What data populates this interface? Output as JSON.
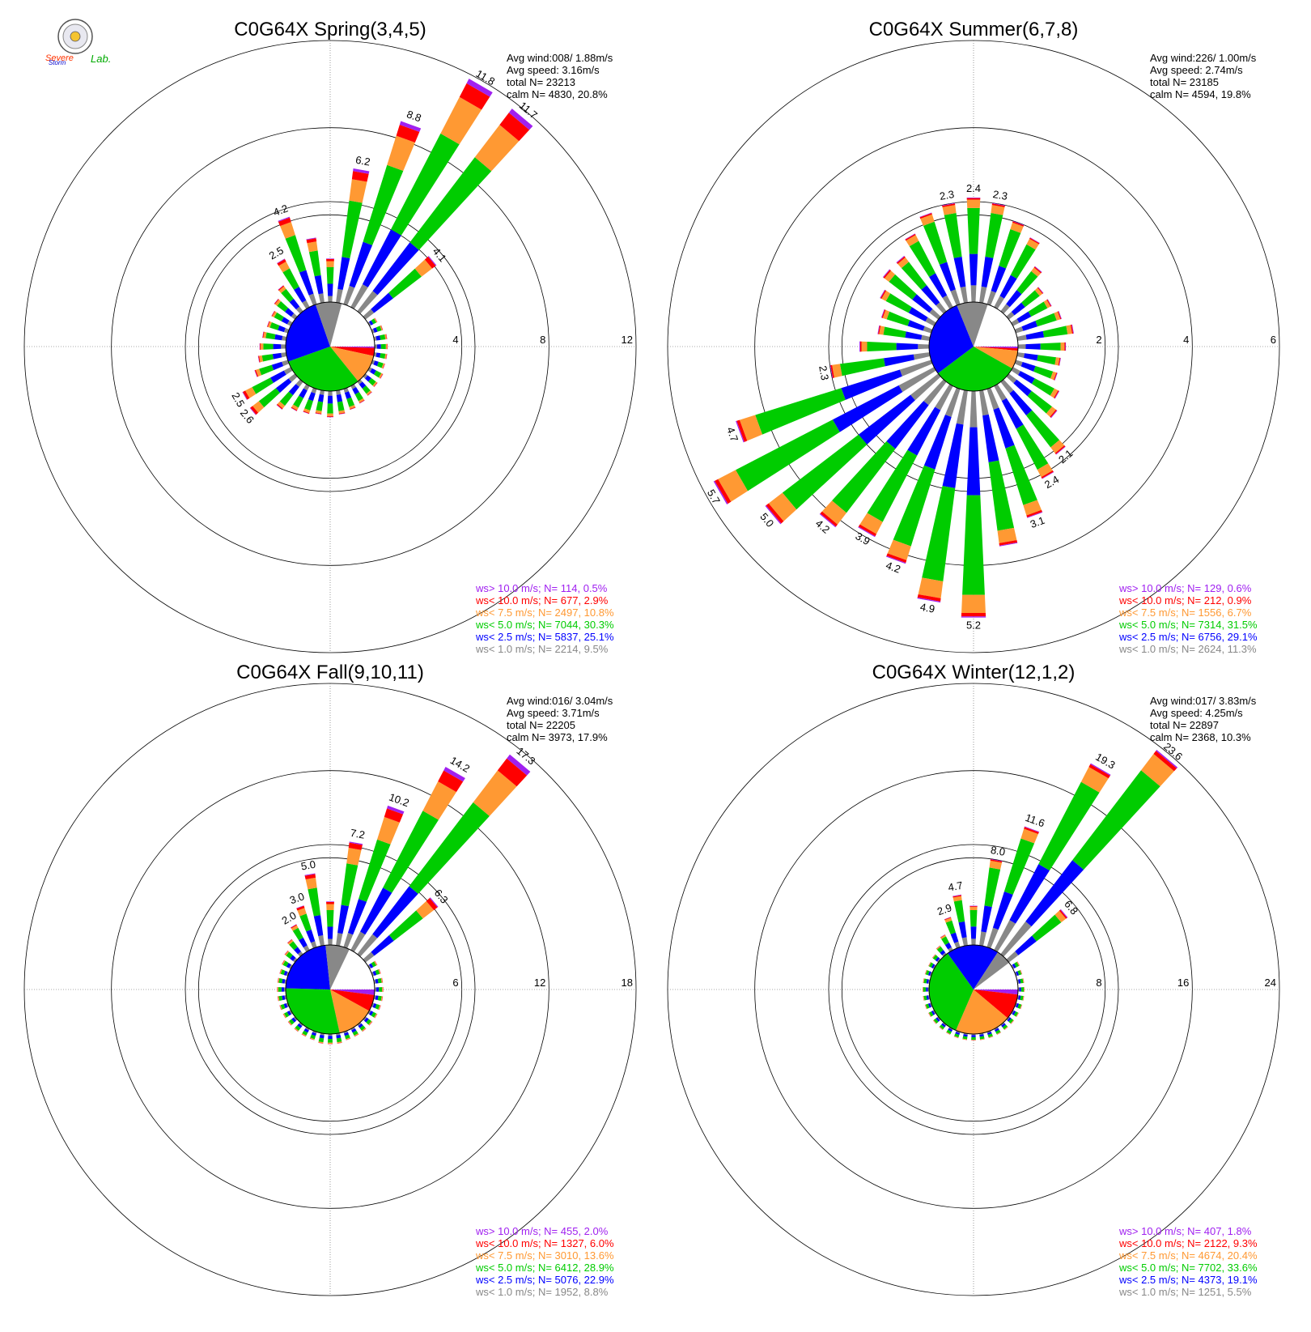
{
  "logo": {
    "text_line1": "Severe",
    "text_line2": "Storm",
    "text_line3": "Lab."
  },
  "legend_categories": [
    {
      "key": "gt10",
      "label": "ws> 10.0 m/s; N=",
      "color": "#a020f0"
    },
    {
      "key": "lt10",
      "label": "ws< 10.0 m/s; N=",
      "color": "#ff0000"
    },
    {
      "key": "lt75",
      "label": "ws<  7.5 m/s; N=",
      "color": "#ff9933"
    },
    {
      "key": "lt5",
      "label": "ws<  5.0 m/s; N=",
      "color": "#00cc00"
    },
    {
      "key": "lt25",
      "label": "ws<  2.5 m/s; N=",
      "color": "#0000ff"
    },
    {
      "key": "lt1",
      "label": "ws<  1.0 m/s; N=",
      "color": "#888888"
    }
  ],
  "chart_data": [
    {
      "type": "windrose",
      "title": "C0G64X Spring(3,4,5)",
      "stats": {
        "avg_wind": "Avg wind:008/ 1.88m/s",
        "avg_speed": "Avg speed: 3.16m/s",
        "total_label": "total N=",
        "total": "23213",
        "calm_label": "calm N=",
        "calm": "4830,  20.8%"
      },
      "ring_labels": [
        "4",
        "8",
        "12"
      ],
      "rmax": 12,
      "legend": [
        {
          "n": "114",
          "pct": "0.5%"
        },
        {
          "n": "677",
          "pct": "2.9%"
        },
        {
          "n": "2497",
          "pct": "10.8%"
        },
        {
          "n": "7044",
          "pct": "30.3%"
        },
        {
          "n": "5837",
          "pct": "25.1%"
        },
        {
          "n": "2214",
          "pct": "9.5%"
        }
      ],
      "pie": [
        0.5,
        2.9,
        10.8,
        30.3,
        25.1,
        9.5
      ],
      "sectors": [
        {
          "dir": 0,
          "total": 2.0
        },
        {
          "dir": 10,
          "total": 6.2,
          "label": "6.2"
        },
        {
          "dir": 20,
          "total": 8.8,
          "label": "8.8"
        },
        {
          "dir": 30,
          "total": 11.8,
          "label": "11.8"
        },
        {
          "dir": 40,
          "total": 11.7,
          "label": "11.7"
        },
        {
          "dir": 50,
          "total": 4.1,
          "label": "4.1"
        },
        {
          "dir": 60,
          "total": 0.4
        },
        {
          "dir": 70,
          "total": 0.5
        },
        {
          "dir": 80,
          "total": 0.6
        },
        {
          "dir": 90,
          "total": 0.6
        },
        {
          "dir": 100,
          "total": 0.6
        },
        {
          "dir": 110,
          "total": 0.6
        },
        {
          "dir": 120,
          "total": 0.7
        },
        {
          "dir": 130,
          "total": 0.7
        },
        {
          "dir": 140,
          "total": 0.8
        },
        {
          "dir": 150,
          "total": 0.9
        },
        {
          "dir": 160,
          "total": 1.0
        },
        {
          "dir": 170,
          "total": 1.1
        },
        {
          "dir": 180,
          "total": 1.2
        },
        {
          "dir": 190,
          "total": 1.1
        },
        {
          "dir": 200,
          "total": 1.2
        },
        {
          "dir": 210,
          "total": 1.3
        },
        {
          "dir": 220,
          "total": 1.6
        },
        {
          "dir": 230,
          "total": 2.6,
          "label": "2.6"
        },
        {
          "dir": 240,
          "total": 2.5,
          "label": "2.5"
        },
        {
          "dir": 250,
          "total": 1.6
        },
        {
          "dir": 260,
          "total": 1.3
        },
        {
          "dir": 270,
          "total": 1.2
        },
        {
          "dir": 280,
          "total": 1.1
        },
        {
          "dir": 290,
          "total": 1.0
        },
        {
          "dir": 300,
          "total": 1.0
        },
        {
          "dir": 310,
          "total": 1.2
        },
        {
          "dir": 320,
          "total": 1.5
        },
        {
          "dir": 330,
          "total": 2.5,
          "label": "2.5"
        },
        {
          "dir": 340,
          "total": 4.2,
          "label": "4.2"
        },
        {
          "dir": 350,
          "total": 3.0
        }
      ]
    },
    {
      "type": "windrose",
      "title": "C0G64X Summer(6,7,8)",
      "stats": {
        "avg_wind": "Avg wind:226/ 1.00m/s",
        "avg_speed": "Avg speed: 2.74m/s",
        "total_label": "total N=",
        "total": "23185",
        "calm_label": "calm N=",
        "calm": "4594,  19.8%"
      },
      "ring_labels": [
        "2",
        "4",
        "6"
      ],
      "rmax": 6,
      "legend": [
        {
          "n": "129",
          "pct": "0.6%"
        },
        {
          "n": "212",
          "pct": "0.9%"
        },
        {
          "n": "1556",
          "pct": "6.7%"
        },
        {
          "n": "7314",
          "pct": "31.5%"
        },
        {
          "n": "6756",
          "pct": "29.1%"
        },
        {
          "n": "2624",
          "pct": "11.3%"
        }
      ],
      "pie": [
        0.6,
        0.9,
        6.7,
        31.5,
        29.1,
        11.3
      ],
      "sectors": [
        {
          "dir": 0,
          "total": 2.4,
          "label": "2.4"
        },
        {
          "dir": 10,
          "total": 2.3,
          "label": "2.3"
        },
        {
          "dir": 20,
          "total": 2.0
        },
        {
          "dir": 30,
          "total": 1.8
        },
        {
          "dir": 40,
          "total": 1.3
        },
        {
          "dir": 50,
          "total": 1.0
        },
        {
          "dir": 60,
          "total": 1.0
        },
        {
          "dir": 70,
          "total": 1.1
        },
        {
          "dir": 80,
          "total": 1.3
        },
        {
          "dir": 90,
          "total": 1.1
        },
        {
          "dir": 100,
          "total": 1.0
        },
        {
          "dir": 110,
          "total": 1.0
        },
        {
          "dir": 120,
          "total": 1.2
        },
        {
          "dir": 130,
          "total": 1.4
        },
        {
          "dir": 140,
          "total": 2.1,
          "label": "2.1"
        },
        {
          "dir": 150,
          "total": 2.4,
          "label": "2.4"
        },
        {
          "dir": 160,
          "total": 3.1,
          "label": "3.1"
        },
        {
          "dir": 170,
          "total": 3.6
        },
        {
          "dir": 180,
          "total": 5.2,
          "label": "5.2"
        },
        {
          "dir": 190,
          "total": 4.9,
          "label": "4.9"
        },
        {
          "dir": 200,
          "total": 4.2,
          "label": "4.2"
        },
        {
          "dir": 210,
          "total": 3.9,
          "label": "3.9"
        },
        {
          "dir": 220,
          "total": 4.2,
          "label": "4.2"
        },
        {
          "dir": 230,
          "total": 5.0,
          "label": "5.0"
        },
        {
          "dir": 240,
          "total": 5.7,
          "label": "5.7"
        },
        {
          "dir": 250,
          "total": 4.7,
          "label": "4.7"
        },
        {
          "dir": 260,
          "total": 2.3,
          "label": "2.3"
        },
        {
          "dir": 270,
          "total": 1.6
        },
        {
          "dir": 280,
          "total": 1.2
        },
        {
          "dir": 290,
          "total": 1.2
        },
        {
          "dir": 300,
          "total": 1.4
        },
        {
          "dir": 310,
          "total": 1.6
        },
        {
          "dir": 320,
          "total": 1.6
        },
        {
          "dir": 330,
          "total": 1.9
        },
        {
          "dir": 340,
          "total": 2.2
        },
        {
          "dir": 350,
          "total": 2.3,
          "label": "2.3"
        }
      ]
    },
    {
      "type": "windrose",
      "title": "C0G64X Fall(9,10,11)",
      "stats": {
        "avg_wind": "Avg wind:016/ 3.04m/s",
        "avg_speed": "Avg speed: 3.71m/s",
        "total_label": "total N=",
        "total": "22205",
        "calm_label": "calm N=",
        "calm": "3973,  17.9%"
      },
      "ring_labels": [
        "6",
        "12",
        "18"
      ],
      "rmax": 18,
      "legend": [
        {
          "n": "455",
          "pct": "2.0%"
        },
        {
          "n": "1327",
          "pct": "6.0%"
        },
        {
          "n": "3010",
          "pct": "13.6%"
        },
        {
          "n": "6412",
          "pct": "28.9%"
        },
        {
          "n": "5076",
          "pct": "22.9%"
        },
        {
          "n": "1952",
          "pct": "8.8%"
        }
      ],
      "pie": [
        2.0,
        6.0,
        13.6,
        28.9,
        22.9,
        8.8
      ],
      "sectors": [
        {
          "dir": 0,
          "total": 3.0
        },
        {
          "dir": 10,
          "total": 7.2,
          "label": "7.2"
        },
        {
          "dir": 20,
          "total": 10.2,
          "label": "10.2"
        },
        {
          "dir": 30,
          "total": 14.2,
          "label": "14.2"
        },
        {
          "dir": 40,
          "total": 17.3,
          "label": "17.3"
        },
        {
          "dir": 50,
          "total": 6.3,
          "label": "6.3"
        },
        {
          "dir": 60,
          "total": 0.6
        },
        {
          "dir": 70,
          "total": 0.6
        },
        {
          "dir": 80,
          "total": 0.6
        },
        {
          "dir": 90,
          "total": 0.6
        },
        {
          "dir": 100,
          "total": 0.6
        },
        {
          "dir": 110,
          "total": 0.6
        },
        {
          "dir": 120,
          "total": 0.6
        },
        {
          "dir": 130,
          "total": 0.6
        },
        {
          "dir": 140,
          "total": 0.6
        },
        {
          "dir": 150,
          "total": 0.6
        },
        {
          "dir": 160,
          "total": 0.6
        },
        {
          "dir": 170,
          "total": 0.7
        },
        {
          "dir": 180,
          "total": 0.7
        },
        {
          "dir": 190,
          "total": 0.7
        },
        {
          "dir": 200,
          "total": 0.6
        },
        {
          "dir": 210,
          "total": 0.6
        },
        {
          "dir": 220,
          "total": 0.6
        },
        {
          "dir": 230,
          "total": 0.6
        },
        {
          "dir": 240,
          "total": 0.6
        },
        {
          "dir": 250,
          "total": 0.6
        },
        {
          "dir": 260,
          "total": 0.6
        },
        {
          "dir": 270,
          "total": 0.6
        },
        {
          "dir": 280,
          "total": 0.6
        },
        {
          "dir": 290,
          "total": 0.6
        },
        {
          "dir": 300,
          "total": 0.7
        },
        {
          "dir": 310,
          "total": 0.9
        },
        {
          "dir": 320,
          "total": 1.3
        },
        {
          "dir": 330,
          "total": 2.0,
          "label": "2.0"
        },
        {
          "dir": 340,
          "total": 3.0,
          "label": "3.0"
        },
        {
          "dir": 350,
          "total": 5.0,
          "label": "5.0"
        }
      ]
    },
    {
      "type": "windrose",
      "title": "C0G64X Winter(12,1,2)",
      "stats": {
        "avg_wind": "Avg wind:017/ 3.83m/s",
        "avg_speed": "Avg speed: 4.25m/s",
        "total_label": "total N=",
        "total": "22897",
        "calm_label": "calm N=",
        "calm": "2368,  10.3%"
      },
      "ring_labels": [
        "8",
        "16",
        "24"
      ],
      "rmax": 24,
      "legend": [
        {
          "n": "407",
          "pct": "1.8%"
        },
        {
          "n": "2122",
          "pct": "9.3%"
        },
        {
          "n": "4674",
          "pct": "20.4%"
        },
        {
          "n": "7702",
          "pct": "33.6%"
        },
        {
          "n": "4373",
          "pct": "19.1%"
        },
        {
          "n": "1251",
          "pct": "5.5%"
        }
      ],
      "pie": [
        1.8,
        9.3,
        20.4,
        33.6,
        19.1,
        5.5
      ],
      "sectors": [
        {
          "dir": 0,
          "total": 3.6
        },
        {
          "dir": 10,
          "total": 8.0,
          "label": "8.0"
        },
        {
          "dir": 20,
          "total": 11.6,
          "label": "11.6"
        },
        {
          "dir": 30,
          "total": 19.3,
          "label": "19.3"
        },
        {
          "dir": 40,
          "total": 23.6,
          "label": "23.6"
        },
        {
          "dir": 50,
          "total": 6.8,
          "label": "6.8"
        },
        {
          "dir": 60,
          "total": 0.7
        },
        {
          "dir": 70,
          "total": 0.6
        },
        {
          "dir": 80,
          "total": 0.6
        },
        {
          "dir": 90,
          "total": 0.6
        },
        {
          "dir": 100,
          "total": 0.6
        },
        {
          "dir": 110,
          "total": 0.6
        },
        {
          "dir": 120,
          "total": 0.6
        },
        {
          "dir": 130,
          "total": 0.6
        },
        {
          "dir": 140,
          "total": 0.6
        },
        {
          "dir": 150,
          "total": 0.6
        },
        {
          "dir": 160,
          "total": 0.6
        },
        {
          "dir": 170,
          "total": 0.6
        },
        {
          "dir": 180,
          "total": 0.6
        },
        {
          "dir": 190,
          "total": 0.6
        },
        {
          "dir": 200,
          "total": 0.6
        },
        {
          "dir": 210,
          "total": 0.6
        },
        {
          "dir": 220,
          "total": 0.6
        },
        {
          "dir": 230,
          "total": 0.6
        },
        {
          "dir": 240,
          "total": 0.6
        },
        {
          "dir": 250,
          "total": 0.6
        },
        {
          "dir": 260,
          "total": 0.6
        },
        {
          "dir": 270,
          "total": 0.6
        },
        {
          "dir": 280,
          "total": 0.6
        },
        {
          "dir": 290,
          "total": 0.6
        },
        {
          "dir": 300,
          "total": 0.6
        },
        {
          "dir": 310,
          "total": 0.7
        },
        {
          "dir": 320,
          "total": 1.0
        },
        {
          "dir": 330,
          "total": 1.6
        },
        {
          "dir": 340,
          "total": 2.9,
          "label": "2.9"
        },
        {
          "dir": 350,
          "total": 4.7,
          "label": "4.7"
        }
      ]
    }
  ]
}
